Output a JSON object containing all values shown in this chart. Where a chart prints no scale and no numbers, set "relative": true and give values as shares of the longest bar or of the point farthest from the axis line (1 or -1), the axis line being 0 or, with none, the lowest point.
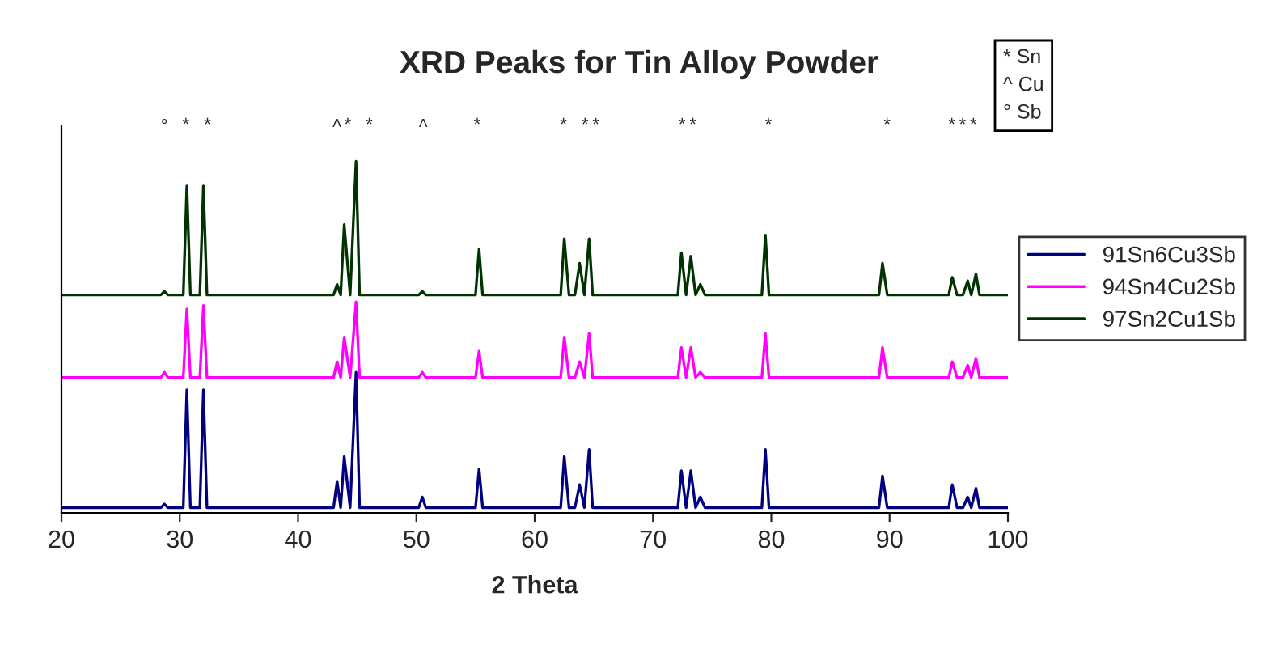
{
  "chart_data": {
    "type": "line",
    "title": "XRD Peaks for Tin Alloy Powder",
    "xlabel": "2 Theta",
    "relative": true,
    "xlim": [
      20,
      100
    ],
    "xticks": [
      20,
      30,
      40,
      50,
      60,
      70,
      80,
      90,
      100
    ],
    "legend": "right",
    "grid": false,
    "annotations": [
      "° * *           ^* *    ^    *       * **       **      *          *     ***",
      "* Sn\n^ Cu\n° Sb"
    ],
    "series": [
      {
        "name": "91Sn6Cu3Sb",
        "color": "#000080",
        "x": [
          20,
          28.4,
          28.7,
          29.0,
          30.3,
          30.6,
          30.9,
          31.7,
          32.0,
          32.3,
          43.0,
          43.3,
          43.6,
          43.9,
          44.4,
          44.9,
          45.2,
          50.2,
          50.5,
          50.8,
          55.0,
          55.3,
          55.6,
          62.2,
          62.5,
          62.9,
          63.4,
          63.8,
          64.2,
          64.6,
          64.9,
          72.1,
          72.4,
          72.8,
          73.2,
          73.6,
          74.0,
          74.4,
          79.2,
          79.5,
          79.8,
          89.1,
          89.4,
          89.8,
          95.0,
          95.3,
          95.7,
          96.2,
          96.6,
          96.9,
          97.3,
          97.6,
          100
        ],
        "values": [
          0.015,
          0.015,
          0.025,
          0.015,
          0.015,
          0.35,
          0.015,
          0.015,
          0.35,
          0.015,
          0.015,
          0.09,
          0.015,
          0.16,
          0.015,
          0.4,
          0.015,
          0.015,
          0.045,
          0.015,
          0.015,
          0.125,
          0.015,
          0.015,
          0.16,
          0.015,
          0.015,
          0.08,
          0.015,
          0.18,
          0.015,
          0.015,
          0.12,
          0.015,
          0.12,
          0.015,
          0.045,
          0.015,
          0.015,
          0.18,
          0.015,
          0.015,
          0.105,
          0.015,
          0.015,
          0.08,
          0.015,
          0.015,
          0.045,
          0.015,
          0.07,
          0.015,
          0.015
        ]
      },
      {
        "name": "94Sn4Cu2Sb",
        "color": "#ff00ff",
        "x": [
          20,
          28.4,
          28.7,
          29.0,
          30.3,
          30.6,
          30.9,
          31.7,
          32.0,
          32.3,
          43.0,
          43.3,
          43.6,
          43.9,
          44.4,
          44.9,
          45.2,
          50.2,
          50.5,
          50.8,
          55.0,
          55.3,
          55.6,
          62.2,
          62.5,
          62.9,
          63.4,
          63.8,
          64.2,
          64.6,
          64.9,
          72.1,
          72.4,
          72.8,
          73.2,
          73.6,
          74.0,
          74.4,
          79.2,
          79.5,
          79.8,
          89.1,
          89.4,
          89.8,
          95.0,
          95.3,
          95.7,
          96.2,
          96.6,
          96.9,
          97.3,
          97.6,
          100
        ],
        "values": [
          0.385,
          0.385,
          0.4,
          0.385,
          0.385,
          0.58,
          0.385,
          0.385,
          0.59,
          0.385,
          0.385,
          0.43,
          0.385,
          0.5,
          0.385,
          0.6,
          0.385,
          0.385,
          0.4,
          0.385,
          0.385,
          0.46,
          0.385,
          0.385,
          0.5,
          0.385,
          0.385,
          0.43,
          0.385,
          0.51,
          0.385,
          0.385,
          0.47,
          0.385,
          0.47,
          0.385,
          0.4,
          0.385,
          0.385,
          0.51,
          0.385,
          0.385,
          0.47,
          0.385,
          0.385,
          0.43,
          0.385,
          0.385,
          0.42,
          0.385,
          0.44,
          0.385,
          0.385
        ]
      },
      {
        "name": "97Sn2Cu1Sb",
        "color": "#003300",
        "x": [
          20,
          28.4,
          28.7,
          29.0,
          30.3,
          30.6,
          30.9,
          31.7,
          32.0,
          32.3,
          43.0,
          43.3,
          43.6,
          43.9,
          44.4,
          44.9,
          45.2,
          50.2,
          50.5,
          50.8,
          55.0,
          55.3,
          55.6,
          62.2,
          62.5,
          62.9,
          63.4,
          63.8,
          64.2,
          64.6,
          64.9,
          72.1,
          72.4,
          72.8,
          73.2,
          73.6,
          74.0,
          74.4,
          79.2,
          79.5,
          79.8,
          89.1,
          89.4,
          89.8,
          95.0,
          95.3,
          95.7,
          96.2,
          96.6,
          96.9,
          97.3,
          97.6,
          100
        ],
        "values": [
          0.62,
          0.62,
          0.63,
          0.62,
          0.62,
          0.93,
          0.62,
          0.62,
          0.93,
          0.62,
          0.62,
          0.65,
          0.62,
          0.82,
          0.62,
          1.0,
          0.62,
          0.62,
          0.63,
          0.62,
          0.62,
          0.75,
          0.62,
          0.62,
          0.78,
          0.62,
          0.62,
          0.71,
          0.62,
          0.78,
          0.62,
          0.62,
          0.74,
          0.62,
          0.73,
          0.62,
          0.65,
          0.62,
          0.62,
          0.79,
          0.62,
          0.62,
          0.71,
          0.62,
          0.62,
          0.67,
          0.62,
          0.62,
          0.66,
          0.62,
          0.68,
          0.62,
          0.62
        ]
      }
    ]
  }
}
